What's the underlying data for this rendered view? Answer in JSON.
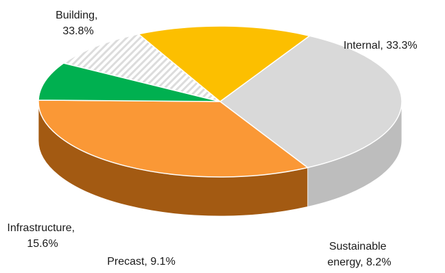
{
  "chart_data": {
    "type": "pie",
    "style": "3d-tilted",
    "title": "",
    "slices": [
      {
        "name": "Building",
        "value": 33.8,
        "label_lines": [
          "Building,",
          "33.8%"
        ],
        "color": "#d9d9d9",
        "side_color": "#bdbdbd"
      },
      {
        "name": "Internal",
        "value": 33.3,
        "label_lines": [
          "Internal, 33.3%"
        ],
        "color": "#fa9836",
        "side_color": "#a35a12"
      },
      {
        "name": "Sustainable energy",
        "value": 8.2,
        "label_lines": [
          "Sustainable",
          "energy, 8.2%"
        ],
        "color": "#00b050",
        "side_color": "#0b5e2a"
      },
      {
        "name": "Precast",
        "value": 9.1,
        "label_lines": [
          "Precast, 9.1%"
        ],
        "color": "#ffffff",
        "hatch": "#d4d4d4",
        "side_color": "#8c8c8c"
      },
      {
        "name": "Infrastructure",
        "value": 15.6,
        "label_lines": [
          "Infrastructure,",
          "15.6%"
        ],
        "color": "#fcbf00",
        "side_color": "#c9960a"
      }
    ]
  }
}
